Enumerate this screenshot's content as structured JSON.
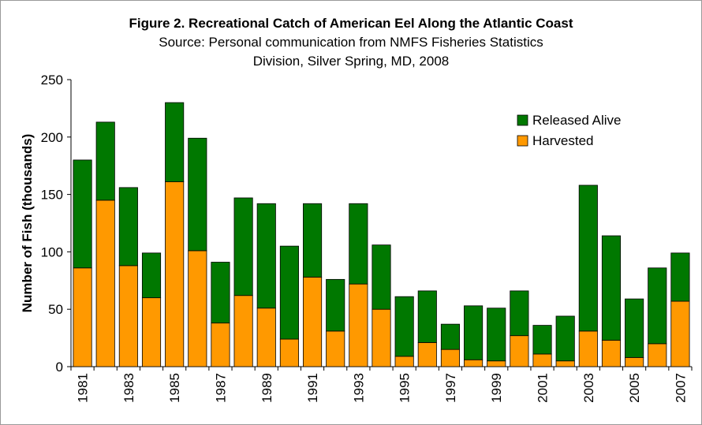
{
  "chart_data": {
    "type": "bar",
    "stacked": true,
    "title": "Figure 2. Recreational Catch of American Eel Along the Atlantic Coast",
    "subtitle_lines": [
      "Source: Personal communication from NMFS Fisheries Statistics",
      "Division, Silver Spring, MD, 2008"
    ],
    "xlabel": "",
    "ylabel": "Number of Fish (thousands)",
    "ylim": [
      0,
      250
    ],
    "yticks": [
      0,
      50,
      100,
      150,
      200,
      250
    ],
    "xtick_labels_shown": [
      "1981",
      "1983",
      "1985",
      "1987",
      "1989",
      "1991",
      "1993",
      "1995",
      "1997",
      "1999",
      "2001",
      "2003",
      "2005",
      "2007"
    ],
    "categories": [
      "1981",
      "1982",
      "1983",
      "1984",
      "1985",
      "1986",
      "1987",
      "1988",
      "1989",
      "1990",
      "1991",
      "1992",
      "1993",
      "1994",
      "1995",
      "1996",
      "1997",
      "1998",
      "1999",
      "2000",
      "2001",
      "2002",
      "2003",
      "2004",
      "2005",
      "2006",
      "2007"
    ],
    "series": [
      {
        "name": "Harvested",
        "color": "#ff9900",
        "values": [
          86,
          145,
          88,
          60,
          161,
          101,
          38,
          62,
          51,
          24,
          78,
          31,
          72,
          50,
          9,
          21,
          15,
          6,
          5,
          27,
          11,
          5,
          31,
          23,
          8,
          20,
          57
        ]
      },
      {
        "name": "Released Alive",
        "color": "#007800",
        "values": [
          94,
          68,
          68,
          39,
          69,
          98,
          53,
          85,
          91,
          81,
          64,
          45,
          70,
          56,
          52,
          45,
          22,
          47,
          46,
          39,
          25,
          39,
          127,
          91,
          51,
          66,
          42
        ]
      }
    ],
    "legend_position": "top-right",
    "legend_order": [
      "Released Alive",
      "Harvested"
    ],
    "grid": false,
    "plot_background": "#ffffff",
    "bar_edge_color": "#000000"
  }
}
